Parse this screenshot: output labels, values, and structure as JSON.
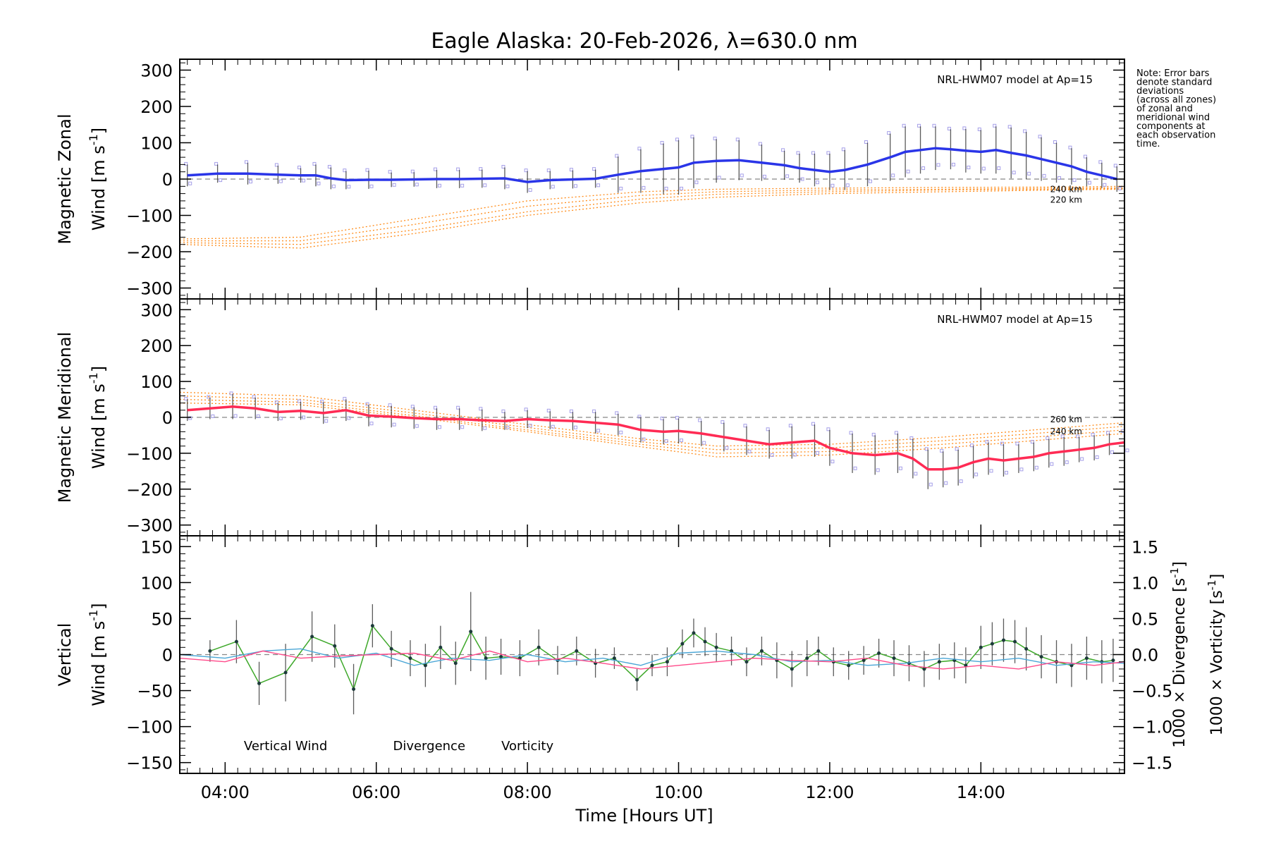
{
  "title": "Eagle Alaska: 20-Feb-2026, λ=630.0 nm",
  "note": [
    "Note: Error bars",
    "denote standard",
    "deviations",
    "(across all zones)",
    "of zonal and",
    "meridional wind",
    "components at",
    "each observation",
    "time."
  ],
  "colors": {
    "zonal": "#2a35e8",
    "meridional": "#ff2b54",
    "model": "#ff8c1a",
    "vertical": "#3ea82a",
    "divergence": "#4aa6d6",
    "vorticity": "#ff4a8a",
    "scatter": "#a59fe8",
    "errbar": "#333333"
  },
  "x_axis": {
    "label": "Time [Hours UT]",
    "range": [
      3.4,
      15.9
    ],
    "ticks": [
      4,
      6,
      8,
      10,
      12,
      14
    ],
    "tick_labels": [
      "04:00",
      "06:00",
      "08:00",
      "10:00",
      "12:00",
      "14:00"
    ]
  },
  "chart_data": [
    {
      "type": "line",
      "id": "zonal",
      "ylabel": [
        "Magnetic Zonal",
        "Wind [m s",
        "-1",
        "]"
      ],
      "ylim": [
        -330,
        330
      ],
      "yticks": [
        300,
        200,
        100,
        0,
        -100,
        -200,
        -300
      ],
      "ytick_labels": [
        "300",
        "200",
        "100",
        "0",
        "−100",
        "−200",
        "−300"
      ],
      "model_label": "NRL-HWM07 model at Ap=15",
      "model_alt_labels": [
        "240 km",
        "220 km"
      ],
      "series": [
        {
          "name": "zonal wind",
          "x": [
            3.5,
            3.9,
            4.3,
            4.7,
            5.0,
            5.2,
            5.4,
            5.6,
            5.9,
            6.2,
            6.5,
            6.8,
            7.1,
            7.4,
            7.7,
            8.0,
            8.3,
            8.6,
            8.9,
            9.2,
            9.5,
            9.8,
            10.0,
            10.2,
            10.5,
            10.8,
            11.1,
            11.4,
            11.6,
            11.8,
            12.0,
            12.2,
            12.5,
            12.8,
            13.0,
            13.2,
            13.4,
            13.6,
            13.8,
            14.0,
            14.2,
            14.4,
            14.6,
            14.8,
            15.0,
            15.2,
            15.4,
            15.6,
            15.8
          ],
          "y": [
            10,
            15,
            15,
            12,
            10,
            10,
            2,
            -3,
            -2,
            -2,
            -1,
            0,
            0,
            1,
            2,
            -8,
            -3,
            -1,
            1,
            12,
            22,
            28,
            32,
            45,
            50,
            52,
            45,
            38,
            30,
            25,
            20,
            25,
            40,
            60,
            75,
            80,
            85,
            82,
            78,
            75,
            80,
            72,
            65,
            55,
            45,
            35,
            20,
            10,
            0
          ],
          "err": [
            30,
            25,
            30,
            25,
            20,
            30,
            30,
            25,
            25,
            20,
            20,
            25,
            25,
            25,
            30,
            30,
            25,
            25,
            25,
            50,
            60,
            70,
            75,
            70,
            60,
            55,
            50,
            40,
            40,
            45,
            50,
            55,
            60,
            65,
            70,
            65,
            60,
            55,
            60,
            60,
            65,
            70,
            65,
            60,
            55,
            50,
            40,
            35,
            35
          ]
        }
      ],
      "model_curves": [
        {
          "x": [
            3.4,
            5.0,
            6.5,
            8.0,
            9.5,
            10.5,
            12.0,
            13.5,
            15.0,
            15.9
          ],
          "y": [
            -180,
            -190,
            -150,
            -100,
            -65,
            -50,
            -40,
            -35,
            -30,
            -28
          ]
        },
        {
          "x": [
            3.4,
            5.0,
            6.5,
            8.0,
            9.5,
            10.5,
            12.0,
            13.5,
            15.0,
            15.9
          ],
          "y": [
            -175,
            -180,
            -140,
            -90,
            -55,
            -42,
            -35,
            -30,
            -28,
            -26
          ]
        },
        {
          "x": [
            3.4,
            5.0,
            6.5,
            8.0,
            9.5,
            10.5,
            12.0,
            13.5,
            15.0,
            15.9
          ],
          "y": [
            -170,
            -170,
            -125,
            -75,
            -45,
            -35,
            -30,
            -28,
            -25,
            -24
          ]
        },
        {
          "x": [
            3.4,
            5.0,
            6.5,
            8.0,
            9.5,
            10.5,
            12.0,
            13.5,
            15.0,
            15.9
          ],
          "y": [
            -165,
            -160,
            -110,
            -60,
            -35,
            -28,
            -25,
            -23,
            -22,
            -20
          ]
        }
      ]
    },
    {
      "type": "line",
      "id": "meridional",
      "ylabel": [
        "Magnetic Meridional",
        "Wind [m s",
        "-1",
        "]"
      ],
      "ylim": [
        -330,
        330
      ],
      "yticks": [
        300,
        200,
        100,
        0,
        -100,
        -200,
        -300
      ],
      "ytick_labels": [
        "300",
        "200",
        "100",
        "0",
        "−100",
        "−200",
        "−300"
      ],
      "model_label": "NRL-HWM07 model at Ap=15",
      "model_alt_labels": [
        "260 km",
        "240 km"
      ],
      "series": [
        {
          "name": "meridional wind",
          "x": [
            3.5,
            3.8,
            4.1,
            4.4,
            4.7,
            5.0,
            5.3,
            5.6,
            5.9,
            6.2,
            6.5,
            6.8,
            7.1,
            7.4,
            7.7,
            8.0,
            8.3,
            8.6,
            8.9,
            9.2,
            9.5,
            9.8,
            10.0,
            10.3,
            10.6,
            10.9,
            11.2,
            11.5,
            11.8,
            12.0,
            12.3,
            12.6,
            12.9,
            13.1,
            13.3,
            13.5,
            13.7,
            13.9,
            14.1,
            14.3,
            14.5,
            14.7,
            14.9,
            15.1,
            15.3,
            15.5,
            15.7,
            15.9
          ],
          "y": [
            20,
            25,
            30,
            25,
            15,
            18,
            12,
            20,
            5,
            2,
            -2,
            -5,
            -5,
            -8,
            -10,
            -5,
            -8,
            -10,
            -15,
            -20,
            -35,
            -40,
            -38,
            -45,
            -55,
            -65,
            -75,
            -70,
            -65,
            -85,
            -100,
            -105,
            -100,
            -115,
            -145,
            -145,
            -140,
            -125,
            -115,
            -120,
            -115,
            -110,
            -100,
            -95,
            -90,
            -85,
            -75,
            -70
          ],
          "err": [
            30,
            30,
            35,
            30,
            25,
            25,
            30,
            30,
            30,
            30,
            30,
            30,
            30,
            30,
            25,
            25,
            25,
            25,
            30,
            30,
            35,
            35,
            35,
            35,
            40,
            40,
            40,
            45,
            45,
            50,
            55,
            55,
            55,
            55,
            55,
            50,
            50,
            45,
            45,
            45,
            40,
            40,
            40,
            40,
            35,
            35,
            30,
            30
          ]
        }
      ],
      "model_curves": [
        {
          "x": [
            3.4,
            5.0,
            6.5,
            8.0,
            9.5,
            10.5,
            12.0,
            13.5,
            15.0,
            15.9
          ],
          "y": [
            70,
            60,
            20,
            -20,
            -60,
            -80,
            -75,
            -55,
            -30,
            -15
          ]
        },
        {
          "x": [
            3.4,
            5.0,
            6.5,
            8.0,
            9.5,
            10.5,
            12.0,
            13.5,
            15.0,
            15.9
          ],
          "y": [
            60,
            50,
            12,
            -28,
            -68,
            -90,
            -85,
            -65,
            -40,
            -25
          ]
        },
        {
          "x": [
            3.4,
            5.0,
            6.5,
            8.0,
            9.5,
            10.5,
            12.0,
            13.5,
            15.0,
            15.9
          ],
          "y": [
            50,
            42,
            5,
            -35,
            -75,
            -100,
            -95,
            -75,
            -50,
            -35
          ]
        },
        {
          "x": [
            3.4,
            5.0,
            6.5,
            8.0,
            9.5,
            10.5,
            12.0,
            13.5,
            15.0,
            15.9
          ],
          "y": [
            40,
            35,
            0,
            -40,
            -82,
            -110,
            -105,
            -85,
            -60,
            -45
          ]
        }
      ]
    },
    {
      "type": "line",
      "id": "vertical",
      "ylabel": [
        "Vertical",
        "Wind [m s",
        "-1",
        "]"
      ],
      "ylim": [
        -165,
        165
      ],
      "yticks": [
        150,
        100,
        50,
        0,
        -50,
        -100,
        -150
      ],
      "ytick_labels": [
        "150",
        "100",
        "50",
        "0",
        "−50",
        "−100",
        "−150"
      ],
      "y2lim": [
        -1.65,
        1.65
      ],
      "y2ticks": [
        1.5,
        1.0,
        0.5,
        0.0,
        -0.5,
        -1.0,
        -1.5
      ],
      "y2tick_labels": [
        "1.5",
        "1.0",
        "0.5",
        "0.0",
        "−0.5",
        "−1.0",
        "−1.5"
      ],
      "y2label_div": [
        "1000 × Divergence [s",
        "-1",
        "]"
      ],
      "y2label_vor": [
        "1000 × Vorticity [s",
        "-1",
        "]"
      ],
      "legend": [
        "Vertical Wind",
        "Divergence",
        "Vorticity"
      ],
      "series": [
        {
          "name": "Vertical Wind",
          "x": [
            3.8,
            4.15,
            4.45,
            4.8,
            5.15,
            5.45,
            5.7,
            5.95,
            6.2,
            6.45,
            6.65,
            6.85,
            7.05,
            7.25,
            7.45,
            7.65,
            7.9,
            8.15,
            8.4,
            8.65,
            8.9,
            9.15,
            9.45,
            9.65,
            9.85,
            10.05,
            10.2,
            10.35,
            10.5,
            10.7,
            10.9,
            11.1,
            11.3,
            11.5,
            11.7,
            11.85,
            12.05,
            12.25,
            12.45,
            12.65,
            12.85,
            13.05,
            13.25,
            13.45,
            13.65,
            13.8,
            14.0,
            14.15,
            14.3,
            14.45,
            14.6,
            14.8,
            15.0,
            15.2,
            15.4,
            15.6,
            15.75
          ],
          "y": [
            5,
            18,
            -40,
            -25,
            25,
            12,
            -48,
            40,
            8,
            -5,
            -15,
            10,
            -12,
            32,
            -5,
            -3,
            -5,
            10,
            -8,
            5,
            -12,
            -5,
            -35,
            -15,
            -10,
            15,
            30,
            18,
            10,
            5,
            -10,
            5,
            -8,
            -20,
            -5,
            5,
            -10,
            -15,
            -8,
            2,
            -5,
            -12,
            -20,
            -10,
            -8,
            -15,
            10,
            15,
            20,
            18,
            8,
            -3,
            -10,
            -15,
            -5,
            -10,
            -8
          ],
          "err": [
            15,
            30,
            30,
            40,
            35,
            30,
            35,
            30,
            25,
            25,
            30,
            30,
            30,
            55,
            30,
            25,
            25,
            25,
            20,
            20,
            20,
            15,
            15,
            15,
            20,
            20,
            20,
            20,
            20,
            20,
            20,
            20,
            25,
            25,
            25,
            20,
            20,
            20,
            20,
            20,
            25,
            25,
            25,
            25,
            25,
            25,
            30,
            30,
            30,
            30,
            30,
            30,
            30,
            30,
            30,
            30,
            30
          ]
        },
        {
          "name": "Divergence",
          "x": [
            3.4,
            4.0,
            4.5,
            5.0,
            5.5,
            6.0,
            6.5,
            7.0,
            7.5,
            8.0,
            8.5,
            9.0,
            9.5,
            10.0,
            10.5,
            11.0,
            11.5,
            12.0,
            12.5,
            13.0,
            13.5,
            14.0,
            14.5,
            15.0,
            15.5,
            15.9
          ],
          "y": [
            0.0,
            -0.05,
            0.05,
            0.08,
            -0.05,
            0.02,
            -0.15,
            -0.05,
            -0.08,
            0.0,
            -0.1,
            -0.05,
            -0.15,
            0.02,
            0.05,
            0.0,
            -0.1,
            -0.08,
            -0.15,
            -0.12,
            -0.05,
            -0.1,
            -0.05,
            -0.15,
            -0.1,
            -0.12
          ]
        },
        {
          "name": "Vorticity",
          "x": [
            3.4,
            4.0,
            4.5,
            5.0,
            5.5,
            6.0,
            6.5,
            7.0,
            7.5,
            8.0,
            8.5,
            9.0,
            9.5,
            10.0,
            10.5,
            11.0,
            11.5,
            12.0,
            12.5,
            13.0,
            13.5,
            14.0,
            14.5,
            15.0,
            15.5,
            15.9
          ],
          "y": [
            -0.05,
            -0.1,
            0.05,
            -0.05,
            -0.02,
            0.0,
            0.02,
            -0.08,
            0.05,
            -0.1,
            -0.05,
            -0.12,
            -0.2,
            -0.15,
            -0.1,
            -0.05,
            -0.08,
            -0.1,
            -0.05,
            -0.15,
            -0.2,
            -0.15,
            -0.2,
            -0.1,
            -0.15,
            -0.1
          ]
        }
      ]
    }
  ]
}
